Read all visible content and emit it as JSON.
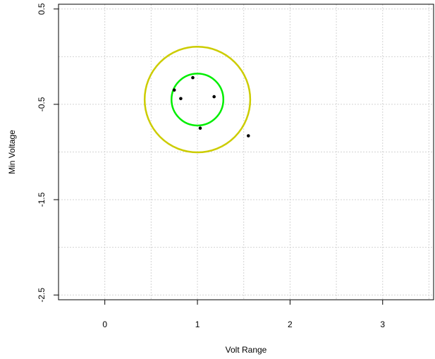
{
  "chart_data": {
    "type": "scatter",
    "title": "",
    "xlabel": "Volt Range",
    "ylabel": "Min Voltage",
    "xlim": [
      -0.5,
      3.55
    ],
    "ylim": [
      -2.55,
      0.55
    ],
    "xticks": [
      0,
      1,
      2,
      3
    ],
    "yticks": [
      0.5,
      -0.5,
      -1.5,
      -2.5
    ],
    "x_tick_labels": [
      "0",
      "1",
      "2",
      "3"
    ],
    "y_tick_labels": [
      "0.5",
      "-0.5",
      "-1.5",
      "-2.5"
    ],
    "grid": true,
    "legend": "none",
    "points": [
      {
        "x": 0.75,
        "y": -0.35
      },
      {
        "x": 0.82,
        "y": -0.44
      },
      {
        "x": 0.95,
        "y": -0.22
      },
      {
        "x": 1.18,
        "y": -0.42
      },
      {
        "x": 1.03,
        "y": -0.75
      },
      {
        "x": 1.55,
        "y": -0.83
      }
    ],
    "circles": [
      {
        "cx": 1.0,
        "cy": -0.45,
        "r": 0.57,
        "color": "#cccc00"
      },
      {
        "cx": 1.0,
        "cy": -0.45,
        "r": 0.28,
        "color": "#00ee00"
      }
    ],
    "colors": {
      "points": "#000000",
      "grid": "#d3d3d3",
      "axes": "#000000"
    }
  }
}
